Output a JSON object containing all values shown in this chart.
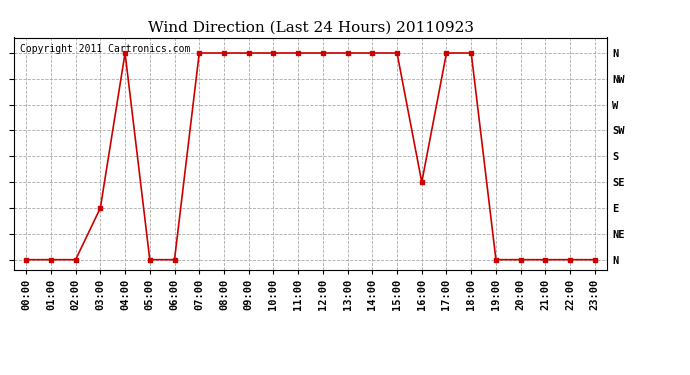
{
  "title": "Wind Direction (Last 24 Hours) 20110923",
  "copyright": "Copyright 2011 Cartronics.com",
  "background_color": "#ffffff",
  "line_color": "#cc0000",
  "grid_color": "#aaaaaa",
  "hours": [
    0,
    1,
    2,
    3,
    4,
    5,
    6,
    7,
    8,
    9,
    10,
    11,
    12,
    13,
    14,
    15,
    16,
    17,
    18,
    19,
    20,
    21,
    22,
    23
  ],
  "wind_values": [
    0,
    0,
    0,
    2,
    8,
    0,
    0,
    8,
    8,
    8,
    8,
    8,
    8,
    8,
    8,
    8,
    3,
    8,
    8,
    0,
    0,
    0,
    0,
    0
  ],
  "ytick_labels": [
    "N",
    "NE",
    "E",
    "SE",
    "S",
    "SW",
    "W",
    "NW",
    "N"
  ],
  "ytick_values": [
    0,
    1,
    2,
    3,
    4,
    5,
    6,
    7,
    8
  ],
  "xtick_labels": [
    "00:00",
    "01:00",
    "02:00",
    "03:00",
    "04:00",
    "05:00",
    "06:00",
    "07:00",
    "08:00",
    "09:00",
    "10:00",
    "11:00",
    "12:00",
    "13:00",
    "14:00",
    "15:00",
    "16:00",
    "17:00",
    "18:00",
    "19:00",
    "20:00",
    "21:00",
    "22:00",
    "23:00"
  ],
  "ylim": [
    -0.4,
    8.6
  ],
  "xlim": [
    -0.5,
    23.5
  ],
  "title_fontsize": 11,
  "tick_fontsize": 7.5,
  "copyright_fontsize": 7
}
